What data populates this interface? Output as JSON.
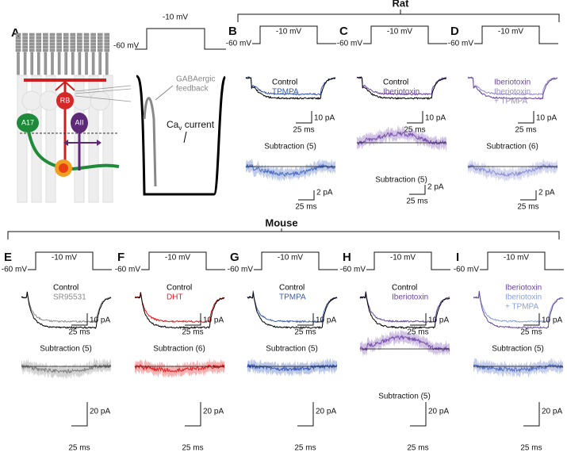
{
  "species": {
    "rat": "Rat",
    "mouse": "Mouse"
  },
  "panel_a": {
    "label": "A",
    "step_top": "-10 mV",
    "step_base": "-60 mV",
    "cells": {
      "rb": "RB",
      "a17": "A17",
      "aii": "AII"
    },
    "feedback": [
      "GABAergic",
      "feedback"
    ],
    "current": {
      "ca": "Ca",
      "sub": "v",
      "word": "current"
    }
  },
  "panels": [
    {
      "label": "B",
      "group": "rat",
      "step_top": "-10 mV",
      "step_base": "-60 mV",
      "legend": [
        {
          "name": "Control",
          "color": "#000000"
        },
        {
          "name": "TPMPA",
          "color": "#3a5bab"
        }
      ],
      "current_scale": "10 pA",
      "time_scale": "25 ms",
      "subtraction": "Subtraction (5)",
      "sub_color": "#4a6ec0",
      "sub_current_scale": "2 pA",
      "sub_time_scale": "25 ms"
    },
    {
      "label": "C",
      "group": "rat",
      "step_top": "-10 mV",
      "step_base": "-60 mV",
      "legend": [
        {
          "name": "Control",
          "color": "#000000"
        },
        {
          "name": "Iberiotoxin",
          "color": "#6a45a0"
        }
      ],
      "current_scale": "10 pA",
      "time_scale": "25 ms",
      "subtraction": "Subtraction (5)",
      "sub_color": "#7b52b0",
      "sub_current_scale": "2 pA",
      "sub_time_scale": "25 ms"
    },
    {
      "label": "D",
      "group": "rat",
      "step_top": "-10 mV",
      "step_base": "-60 mV",
      "legend": [
        {
          "name": "Iberiotoxin",
          "color": "#6a45a0"
        },
        {
          "name": "Iberiotoxin",
          "color": "#9a8ec8"
        },
        {
          "name": "+ TPMPA",
          "color": "#9a8ec8"
        }
      ],
      "current_scale": "10 pA",
      "time_scale": "25 ms",
      "subtraction": "Subtraction (6)",
      "sub_color": "#8a8fd0",
      "sub_current_scale": "2 pA",
      "sub_time_scale": "25 ms"
    },
    {
      "label": "E",
      "group": "mouse",
      "step_top": "-10 mV",
      "step_base": "-60 mV",
      "legend": [
        {
          "name": "Control",
          "color": "#000000"
        },
        {
          "name": "SR95531",
          "color": "#8a8a8a"
        }
      ],
      "current_scale": "10 pA",
      "time_scale": "25 ms",
      "subtraction": "Subtraction (5)",
      "sub_color": "#808080",
      "sub_current_scale": "20 pA",
      "sub_time_scale": "25 ms"
    },
    {
      "label": "F",
      "group": "mouse",
      "step_top": "-10 mV",
      "step_base": "-60 mV",
      "legend": [
        {
          "name": "Control",
          "color": "#000000"
        },
        {
          "name": "DHT",
          "color": "#e02020"
        }
      ],
      "current_scale": "10 pA",
      "time_scale": "25 ms",
      "subtraction": "Subtraction (6)",
      "sub_color": "#e02020",
      "sub_current_scale": "20 pA",
      "sub_time_scale": "25 ms"
    },
    {
      "label": "G",
      "group": "mouse",
      "step_top": "-10 mV",
      "step_base": "-60 mV",
      "legend": [
        {
          "name": "Control",
          "color": "#000000"
        },
        {
          "name": "TPMPA",
          "color": "#3a5bab"
        }
      ],
      "current_scale": "10 pA",
      "time_scale": "25 ms",
      "subtraction": "Subtraction (5)",
      "sub_color": "#3a5bb8",
      "sub_current_scale": "20 pA",
      "sub_time_scale": "25 ms"
    },
    {
      "label": "H",
      "group": "mouse",
      "step_top": "-10 mV",
      "step_base": "-60 mV",
      "legend": [
        {
          "name": "Control",
          "color": "#000000"
        },
        {
          "name": "Iberiotoxin",
          "color": "#6a45a0"
        }
      ],
      "current_scale": "10 pA",
      "time_scale": "25 ms",
      "subtraction": "Subtraction (5)",
      "sub_color": "#7b52b0",
      "sub_current_scale": "20 pA",
      "sub_time_scale": "25 ms"
    },
    {
      "label": "I",
      "group": "mouse",
      "step_top": "-10 mV",
      "step_base": "-60 mV",
      "legend": [
        {
          "name": "Iberiotoxin",
          "color": "#6a45a0"
        },
        {
          "name": "Iberiotoxin",
          "color": "#8aa0d8"
        },
        {
          "name": "+ TPMPA",
          "color": "#8aa0d8"
        }
      ],
      "current_scale": "10 pA",
      "time_scale": "25 ms",
      "subtraction": "Subtraction (5)",
      "sub_color": "#5570c0",
      "sub_current_scale": "20 pA",
      "sub_time_scale": "25 ms"
    }
  ]
}
